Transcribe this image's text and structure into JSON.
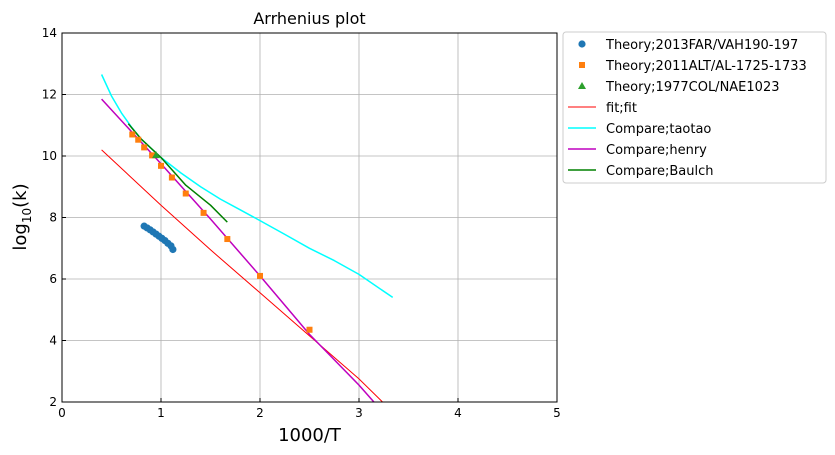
{
  "chart_data": {
    "type": "scatter",
    "title": "Arrhenius plot",
    "xlabel": "1000/T",
    "ylabel_base": "log",
    "ylabel_sub": "10",
    "ylabel_tail": "(k)",
    "xlim": [
      0,
      5
    ],
    "ylim": [
      2,
      14
    ],
    "x_ticks": [
      0,
      1,
      2,
      3,
      4,
      5
    ],
    "y_ticks": [
      2,
      4,
      6,
      8,
      10,
      12,
      14
    ],
    "grid": true,
    "legend_position": "outside-top-right",
    "series": [
      {
        "name": "Theory;2013FAR/VAH190-197",
        "kind": "scatter",
        "marker": "circle",
        "color": "#1f77b4",
        "points": [
          [
            0.83,
            7.72
          ],
          [
            0.86,
            7.66
          ],
          [
            0.89,
            7.6
          ],
          [
            0.92,
            7.53
          ],
          [
            0.95,
            7.46
          ],
          [
            0.98,
            7.39
          ],
          [
            1.01,
            7.32
          ],
          [
            1.04,
            7.25
          ],
          [
            1.07,
            7.16
          ],
          [
            1.1,
            7.08
          ],
          [
            1.12,
            6.96
          ]
        ]
      },
      {
        "name": "Theory;2011ALT/AL-1725-1733",
        "kind": "scatter",
        "marker": "square",
        "color": "#ff7f0e",
        "points": [
          [
            0.71,
            10.7
          ],
          [
            0.77,
            10.53
          ],
          [
            0.83,
            10.28
          ],
          [
            0.91,
            10.02
          ],
          [
            1.0,
            9.68
          ],
          [
            1.11,
            9.3
          ],
          [
            1.25,
            8.78
          ],
          [
            1.43,
            8.15
          ],
          [
            1.67,
            7.3
          ],
          [
            2.0,
            6.1
          ],
          [
            2.5,
            4.35
          ]
        ]
      },
      {
        "name": "Theory;1977COL/NAE1023",
        "kind": "scatter",
        "marker": "triangle",
        "color": "#2ca02c",
        "points": [
          [
            0.95,
            10.03
          ]
        ]
      },
      {
        "name": "fit;fit",
        "kind": "line",
        "color": "#ff0000",
        "stroke_width": 1,
        "points": [
          [
            0.4,
            10.2
          ],
          [
            1.0,
            8.4
          ],
          [
            1.5,
            6.95
          ],
          [
            2.0,
            5.55
          ],
          [
            2.5,
            4.15
          ],
          [
            3.0,
            2.75
          ],
          [
            3.27,
            1.9
          ]
        ]
      },
      {
        "name": "Compare;taotao",
        "kind": "line",
        "color": "#00ffff",
        "stroke_width": 1.5,
        "points": [
          [
            0.4,
            12.65
          ],
          [
            0.5,
            11.95
          ],
          [
            0.6,
            11.4
          ],
          [
            0.7,
            10.95
          ],
          [
            0.8,
            10.55
          ],
          [
            0.9,
            10.25
          ],
          [
            1.0,
            9.95
          ],
          [
            1.2,
            9.45
          ],
          [
            1.4,
            9.0
          ],
          [
            1.6,
            8.6
          ],
          [
            1.8,
            8.25
          ],
          [
            2.0,
            7.9
          ],
          [
            2.25,
            7.45
          ],
          [
            2.5,
            7.0
          ],
          [
            2.75,
            6.6
          ],
          [
            3.0,
            6.15
          ],
          [
            3.34,
            5.4
          ]
        ]
      },
      {
        "name": "Compare;henry",
        "kind": "line",
        "color": "#bf00bf",
        "stroke_width": 1.5,
        "points": [
          [
            0.4,
            11.85
          ],
          [
            0.7,
            10.8
          ],
          [
            1.0,
            9.75
          ],
          [
            1.5,
            7.95
          ],
          [
            2.0,
            6.1
          ],
          [
            2.5,
            4.2
          ],
          [
            3.0,
            2.55
          ],
          [
            3.15,
            2.0
          ]
        ]
      },
      {
        "name": "Compare;Baulch",
        "kind": "line",
        "color": "#008000",
        "stroke_width": 1.5,
        "points": [
          [
            0.67,
            11.05
          ],
          [
            0.8,
            10.55
          ],
          [
            1.0,
            9.95
          ],
          [
            1.25,
            9.05
          ],
          [
            1.5,
            8.4
          ],
          [
            1.67,
            7.85
          ]
        ]
      }
    ]
  }
}
